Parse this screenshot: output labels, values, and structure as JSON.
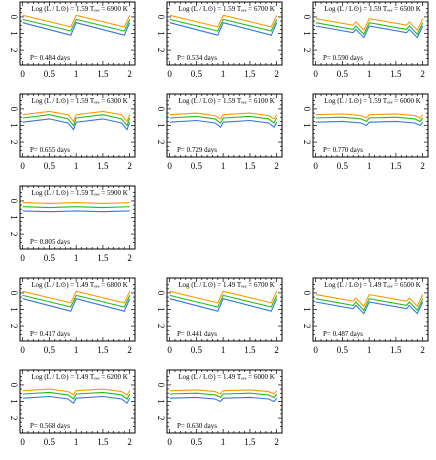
{
  "colors": {
    "series": [
      "#ff9900",
      "#22bb22",
      "#3377dd"
    ],
    "frame": "#000000"
  },
  "chart_data": [
    {
      "type": "line",
      "title": "Log (L / L⊙) = 1.59 Tₑₑₑ = 6900 K",
      "period_label": "P= 0.484 days",
      "xlim": [
        -0.05,
        2.1
      ],
      "ylim": [
        -0.9,
        2.9
      ],
      "y_inverted": true,
      "xticks": [
        "0",
        "0.5",
        "1",
        "1.5",
        "2"
      ],
      "yticks": [
        "0",
        "1",
        "2"
      ],
      "phase_x": [
        0,
        0.9,
        1,
        1.9,
        2
      ],
      "series": [
        {
          "values": [
            -0.1,
            0.6,
            -0.1,
            0.6,
            -0.1
          ]
        },
        {
          "values": [
            0.15,
            0.85,
            0.15,
            0.85,
            0.15
          ]
        },
        {
          "values": [
            0.35,
            1.1,
            0.35,
            1.1,
            0.35
          ]
        }
      ]
    },
    {
      "type": "line",
      "title": "Log (L / L⊙) = 1.59 Tₑₑₑ = 6700 K",
      "period_label": "P= 0.534 days",
      "xlim": [
        -0.05,
        2.1
      ],
      "ylim": [
        -0.9,
        2.9
      ],
      "y_inverted": true,
      "xticks": [
        "0",
        "0.5",
        "1",
        "1.5",
        "2"
      ],
      "yticks": [
        "0",
        "1",
        "2"
      ],
      "phase_x": [
        0,
        0.9,
        1,
        1.9,
        2
      ],
      "series": [
        {
          "values": [
            -0.1,
            0.6,
            -0.1,
            0.6,
            -0.1
          ]
        },
        {
          "values": [
            0.15,
            0.85,
            0.15,
            0.85,
            0.15
          ]
        },
        {
          "values": [
            0.35,
            1.1,
            0.35,
            1.1,
            0.35
          ]
        }
      ]
    },
    {
      "type": "line",
      "title": "Log (L / L⊙) = 1.59 Tₑₑₑ = 6500 K",
      "period_label": "P= 0.590 days",
      "xlim": [
        -0.05,
        2.1
      ],
      "ylim": [
        -0.9,
        2.9
      ],
      "y_inverted": true,
      "xticks": [
        "0",
        "0.5",
        "1",
        "1.5",
        "2"
      ],
      "yticks": [
        "0",
        "1",
        "2"
      ],
      "phase_x": [
        0,
        0.7,
        0.75,
        0.9,
        1,
        1.7,
        1.75,
        1.9,
        2
      ],
      "series": [
        {
          "values": [
            0.1,
            0.5,
            0.3,
            0.8,
            0.1,
            0.5,
            0.3,
            0.8,
            0.1
          ]
        },
        {
          "values": [
            0.35,
            0.75,
            0.55,
            1.05,
            0.35,
            0.75,
            0.55,
            1.05,
            0.35
          ]
        },
        {
          "values": [
            0.55,
            0.95,
            0.75,
            1.25,
            0.55,
            0.95,
            0.75,
            1.25,
            0.55
          ]
        }
      ]
    },
    {
      "type": "line",
      "title": "Log (L / L⊙) = 1.59 Tₑₑₑ = 6300 K",
      "period_label": "P= 0.655 days",
      "xlim": [
        -0.05,
        2.1
      ],
      "ylim": [
        -0.9,
        2.9
      ],
      "y_inverted": true,
      "xticks": [
        "0",
        "0.5",
        "1",
        "1.5",
        "2"
      ],
      "yticks": [
        "0",
        "1",
        "2"
      ],
      "phase_x": [
        0,
        0.5,
        0.85,
        0.95,
        1,
        1.5,
        1.85,
        1.95,
        2
      ],
      "series": [
        {
          "values": [
            0.35,
            0.15,
            0.35,
            0.75,
            0.35,
            0.15,
            0.35,
            0.75,
            0.35
          ]
        },
        {
          "values": [
            0.55,
            0.35,
            0.6,
            1.0,
            0.55,
            0.35,
            0.6,
            1.0,
            0.55
          ]
        },
        {
          "values": [
            0.8,
            0.6,
            0.85,
            1.25,
            0.8,
            0.6,
            0.85,
            1.25,
            0.8
          ]
        }
      ]
    },
    {
      "type": "line",
      "title": "Log (L / L⊙) = 1.59 Tₑₑₑ = 6100 K",
      "period_label": "P= 0.729 days",
      "xlim": [
        -0.05,
        2.1
      ],
      "ylim": [
        -0.9,
        2.9
      ],
      "y_inverted": true,
      "xticks": [
        "0",
        "0.5",
        "1",
        "1.5",
        "2"
      ],
      "yticks": [
        "0",
        "1",
        "2"
      ],
      "phase_x": [
        0,
        0.5,
        0.85,
        0.95,
        1,
        1.5,
        1.85,
        1.95,
        2
      ],
      "series": [
        {
          "values": [
            0.35,
            0.25,
            0.4,
            0.6,
            0.35,
            0.25,
            0.4,
            0.6,
            0.35
          ]
        },
        {
          "values": [
            0.55,
            0.45,
            0.6,
            0.85,
            0.55,
            0.45,
            0.6,
            0.85,
            0.55
          ]
        },
        {
          "values": [
            0.8,
            0.7,
            0.85,
            1.1,
            0.8,
            0.7,
            0.85,
            1.1,
            0.8
          ]
        }
      ]
    },
    {
      "type": "line",
      "title": "Log (L / L⊙) = 1.59 Tₑₑₑ = 6000 K",
      "period_label": "P= 0.770 days",
      "xlim": [
        -0.05,
        2.1
      ],
      "ylim": [
        -0.9,
        2.9
      ],
      "y_inverted": true,
      "xticks": [
        "0",
        "0.5",
        "1",
        "1.5",
        "2"
      ],
      "yticks": [
        "0",
        "1",
        "2"
      ],
      "phase_x": [
        0,
        0.5,
        0.85,
        0.95,
        1,
        1.5,
        1.85,
        1.95,
        2
      ],
      "series": [
        {
          "values": [
            0.35,
            0.3,
            0.4,
            0.55,
            0.35,
            0.3,
            0.4,
            0.55,
            0.35
          ]
        },
        {
          "values": [
            0.55,
            0.5,
            0.6,
            0.75,
            0.55,
            0.5,
            0.6,
            0.75,
            0.55
          ]
        },
        {
          "values": [
            0.8,
            0.75,
            0.85,
            1.0,
            0.8,
            0.75,
            0.85,
            1.0,
            0.8
          ]
        }
      ]
    },
    {
      "type": "line",
      "title": "Log (L / L⊙) = 1.59 Tₑₑₑ = 5900 K",
      "period_label": "P= 0.805 days",
      "xlim": [
        -0.05,
        2.1
      ],
      "ylim": [
        -0.9,
        2.9
      ],
      "y_inverted": true,
      "xticks": [
        "0",
        "0.5",
        "1",
        "1.5",
        "2"
      ],
      "yticks": [
        "0",
        "1",
        "2"
      ],
      "phase_x": [
        0,
        0.5,
        1,
        1.5,
        2
      ],
      "series": [
        {
          "values": [
            0.1,
            0.15,
            0.1,
            0.15,
            0.1
          ]
        },
        {
          "values": [
            0.35,
            0.4,
            0.35,
            0.4,
            0.35
          ]
        },
        {
          "values": [
            0.6,
            0.65,
            0.6,
            0.65,
            0.6
          ]
        }
      ]
    },
    {
      "type": "line",
      "title": "Log (L / L⊙) = 1.49 Tₑₑₑ = 6800 K",
      "period_label": "P= 0.417 days",
      "xlim": [
        -0.05,
        2.1
      ],
      "ylim": [
        -0.9,
        2.9
      ],
      "y_inverted": true,
      "xticks": [
        "0",
        "0.5",
        "1",
        "1.5",
        "2"
      ],
      "yticks": [
        "0",
        "1",
        "2"
      ],
      "phase_x": [
        0,
        0.9,
        1,
        1.9,
        2
      ],
      "series": [
        {
          "values": [
            -0.1,
            0.6,
            -0.1,
            0.6,
            -0.1
          ]
        },
        {
          "values": [
            0.15,
            0.85,
            0.15,
            0.85,
            0.15
          ]
        },
        {
          "values": [
            0.35,
            1.1,
            0.35,
            1.1,
            0.35
          ]
        }
      ]
    },
    {
      "type": "line",
      "title": "Log (L / L⊙) = 1.49 Tₑₑₑ = 6700 K",
      "period_label": "P= 0.441 days",
      "xlim": [
        -0.05,
        2.1
      ],
      "ylim": [
        -0.9,
        2.9
      ],
      "y_inverted": true,
      "xticks": [
        "0",
        "0.5",
        "1",
        "1.5",
        "2"
      ],
      "yticks": [
        "0",
        "1",
        "2"
      ],
      "phase_x": [
        0,
        0.9,
        1,
        1.9,
        2
      ],
      "series": [
        {
          "values": [
            -0.1,
            0.6,
            -0.1,
            0.6,
            -0.1
          ]
        },
        {
          "values": [
            0.15,
            0.85,
            0.15,
            0.85,
            0.15
          ]
        },
        {
          "values": [
            0.35,
            1.1,
            0.35,
            1.1,
            0.35
          ]
        }
      ]
    },
    {
      "type": "line",
      "title": "Log (L / L⊙) = 1.49 Tₑₑₑ = 6500 K",
      "period_label": "P= 0.487 days",
      "xlim": [
        -0.05,
        2.1
      ],
      "ylim": [
        -0.9,
        2.9
      ],
      "y_inverted": true,
      "xticks": [
        "0",
        "0.5",
        "1",
        "1.5",
        "2"
      ],
      "yticks": [
        "0",
        "1",
        "2"
      ],
      "phase_x": [
        0,
        0.7,
        0.75,
        0.9,
        1,
        1.7,
        1.75,
        1.9,
        2
      ],
      "series": [
        {
          "values": [
            0.1,
            0.5,
            0.3,
            0.8,
            0.1,
            0.5,
            0.3,
            0.8,
            0.1
          ]
        },
        {
          "values": [
            0.35,
            0.75,
            0.55,
            1.05,
            0.35,
            0.75,
            0.55,
            1.05,
            0.35
          ]
        },
        {
          "values": [
            0.55,
            0.95,
            0.75,
            1.25,
            0.55,
            0.95,
            0.75,
            1.25,
            0.55
          ]
        }
      ]
    },
    {
      "type": "line",
      "title": "Log (L / L⊙) = 1.49 Tₑₑₑ = 6200 K",
      "period_label": "P= 0.568 days",
      "xlim": [
        -0.05,
        2.1
      ],
      "ylim": [
        -0.9,
        2.9
      ],
      "y_inverted": true,
      "xticks": [
        "0",
        "0.5",
        "1",
        "1.5",
        "2"
      ],
      "yticks": [
        "0",
        "1",
        "2"
      ],
      "phase_x": [
        0,
        0.5,
        0.85,
        0.95,
        1,
        1.5,
        1.85,
        1.95,
        2
      ],
      "series": [
        {
          "values": [
            0.35,
            0.25,
            0.4,
            0.6,
            0.35,
            0.25,
            0.4,
            0.6,
            0.35
          ]
        },
        {
          "values": [
            0.55,
            0.45,
            0.6,
            0.85,
            0.55,
            0.45,
            0.6,
            0.85,
            0.55
          ]
        },
        {
          "values": [
            0.8,
            0.7,
            0.85,
            1.1,
            0.8,
            0.7,
            0.85,
            1.1,
            0.8
          ]
        }
      ]
    },
    {
      "type": "line",
      "title": "Log (L / L⊙) = 1.49 Tₑₑₑ = 6000 K",
      "period_label": "P= 0.630 days",
      "xlim": [
        -0.05,
        2.1
      ],
      "ylim": [
        -0.9,
        2.9
      ],
      "y_inverted": true,
      "xticks": [
        "0",
        "0.5",
        "1",
        "1.5",
        "2"
      ],
      "yticks": [
        "0",
        "1",
        "2"
      ],
      "phase_x": [
        0,
        0.5,
        0.85,
        0.95,
        1,
        1.5,
        1.85,
        1.95,
        2
      ],
      "series": [
        {
          "values": [
            0.35,
            0.3,
            0.4,
            0.55,
            0.35,
            0.3,
            0.4,
            0.55,
            0.35
          ]
        },
        {
          "values": [
            0.55,
            0.5,
            0.6,
            0.75,
            0.55,
            0.5,
            0.6,
            0.75,
            0.55
          ]
        },
        {
          "values": [
            0.8,
            0.75,
            0.85,
            1.0,
            0.8,
            0.75,
            0.85,
            1.0,
            0.8
          ]
        }
      ]
    }
  ]
}
